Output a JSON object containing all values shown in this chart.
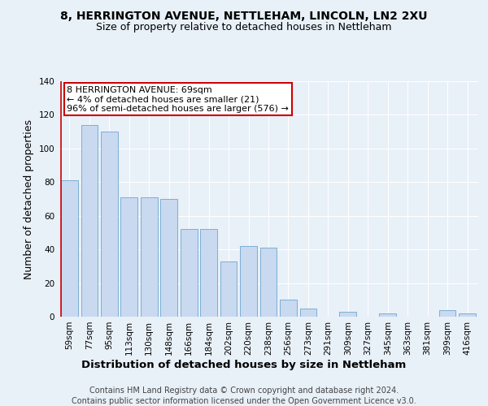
{
  "title": "8, HERRINGTON AVENUE, NETTLEHAM, LINCOLN, LN2 2XU",
  "subtitle": "Size of property relative to detached houses in Nettleham",
  "xlabel": "Distribution of detached houses by size in Nettleham",
  "ylabel": "Number of detached properties",
  "categories": [
    "59sqm",
    "77sqm",
    "95sqm",
    "113sqm",
    "130sqm",
    "148sqm",
    "166sqm",
    "184sqm",
    "202sqm",
    "220sqm",
    "238sqm",
    "256sqm",
    "273sqm",
    "291sqm",
    "309sqm",
    "327sqm",
    "345sqm",
    "363sqm",
    "381sqm",
    "399sqm",
    "416sqm"
  ],
  "values": [
    81,
    114,
    110,
    71,
    71,
    70,
    52,
    52,
    33,
    42,
    41,
    10,
    5,
    0,
    3,
    0,
    2,
    0,
    0,
    4,
    2
  ],
  "bar_color": "#c9d9f0",
  "bar_edge_color": "#7bafd4",
  "highlight_edge_color": "#cc0000",
  "annotation_text_line1": "8 HERRINGTON AVENUE: 69sqm",
  "annotation_text_line2": "← 4% of detached houses are smaller (21)",
  "annotation_text_line3": "96% of semi-detached houses are larger (576) →",
  "annotation_box_color": "white",
  "annotation_box_edge_color": "#cc0000",
  "ylim": [
    0,
    140
  ],
  "yticks": [
    0,
    20,
    40,
    60,
    80,
    100,
    120,
    140
  ],
  "footer_line1": "Contains HM Land Registry data © Crown copyright and database right 2024.",
  "footer_line2": "Contains public sector information licensed under the Open Government Licence v3.0.",
  "background_color": "#e8f0f8",
  "grid_color": "#ffffff",
  "title_fontsize": 10,
  "subtitle_fontsize": 9,
  "ylabel_fontsize": 9,
  "xlabel_fontsize": 9.5,
  "tick_fontsize": 7.5,
  "footer_fontsize": 7,
  "annotation_fontsize": 8
}
